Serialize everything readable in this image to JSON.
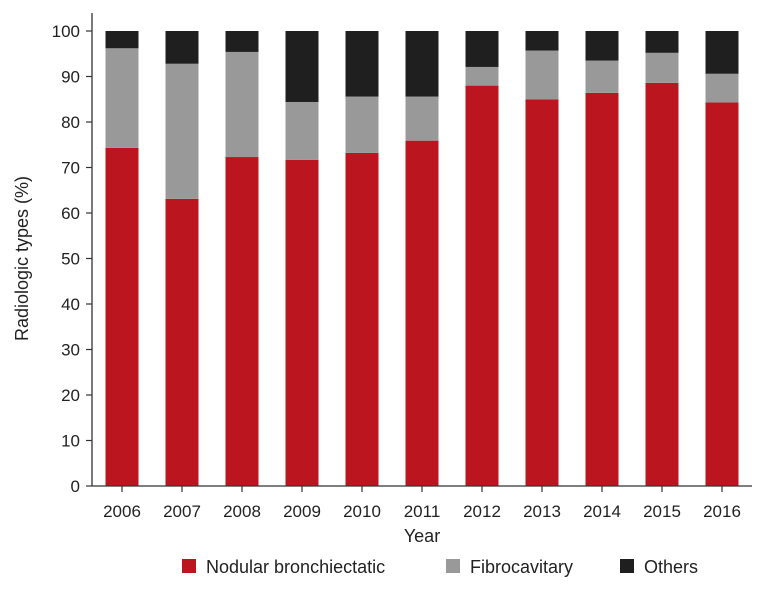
{
  "chart_data": {
    "type": "bar",
    "stacked": true,
    "categories": [
      "2006",
      "2007",
      "2008",
      "2009",
      "2010",
      "2011",
      "2012",
      "2013",
      "2014",
      "2015",
      "2016"
    ],
    "series": [
      {
        "name": "Nodular bronchiectatic",
        "color": "#bb1620",
        "values": [
          74.3,
          63.1,
          72.3,
          71.7,
          73.2,
          75.9,
          88.0,
          85.0,
          86.4,
          88.6,
          84.3
        ]
      },
      {
        "name": "Fibrocavitary",
        "color": "#999999",
        "values": [
          21.9,
          29.7,
          23.1,
          12.7,
          12.4,
          9.7,
          4.1,
          10.7,
          7.1,
          6.6,
          6.3
        ]
      },
      {
        "name": "Others",
        "color": "#1f1f1f",
        "values": [
          3.8,
          7.2,
          4.6,
          15.6,
          14.4,
          14.4,
          7.9,
          4.3,
          6.5,
          4.8,
          9.4
        ]
      }
    ],
    "title": "",
    "xlabel": "Year",
    "ylabel": "Radiologic types (%)",
    "ylim": [
      0,
      100
    ],
    "yticks": [
      0,
      10,
      20,
      30,
      40,
      50,
      60,
      70,
      80,
      90,
      100
    ],
    "grid": false,
    "legend_position": "bottom"
  }
}
